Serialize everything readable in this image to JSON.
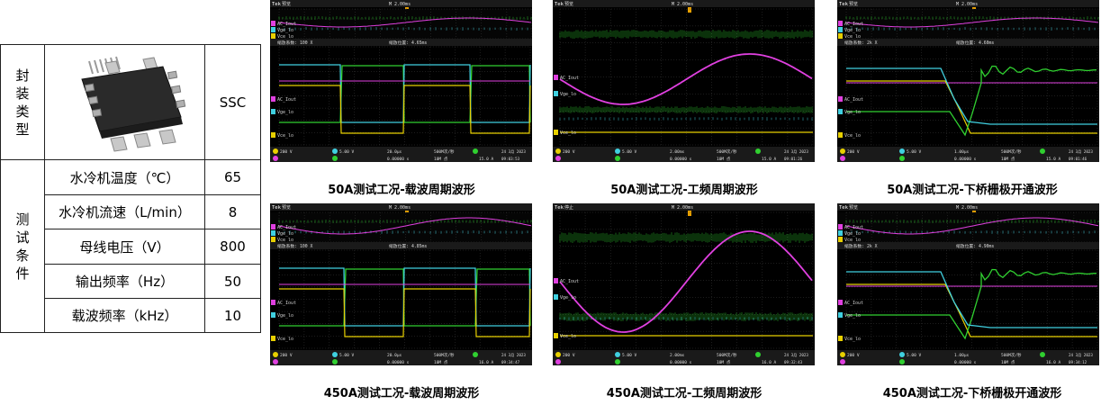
{
  "table": {
    "package_label": [
      "封",
      "装",
      "类",
      "型"
    ],
    "package_value": "SSC",
    "test_label": [
      "测",
      "试",
      "条",
      "件"
    ],
    "rows": [
      {
        "name": "水冷机温度（℃）",
        "value": "65"
      },
      {
        "name": "水冷机流速（L/min）",
        "value": "8"
      },
      {
        "name": "母线电压（V）",
        "value": "800"
      },
      {
        "name": "输出频率（Hz）",
        "value": "50"
      },
      {
        "name": "载波频率（kHz）",
        "value": "10"
      }
    ]
  },
  "panels": [
    {
      "caption": "50A测试工况-载波周期波形",
      "mode": "预览",
      "top_time": "M 2.00ms",
      "zoom_factor": "缩放系数: 100 X",
      "zoom_pos": "缩放位置: 4.65ms",
      "ch1": "200 V",
      "ch2": "5.00 V",
      "ch3": "2 ",
      "ch4": "15.0 A",
      "timebase": "20.0μs",
      "rate": "500M次/秒",
      "points": "10M 点",
      "trigger": "15.0 A",
      "date": "24 3月 2023",
      "time": "09:03:53",
      "offset": "0.00000 s"
    },
    {
      "caption": "50A测试工况-工频周期波形",
      "mode": "预览",
      "top_time": "M 2.00ms",
      "zoom_factor": "",
      "zoom_pos": "",
      "ch1": "200 V",
      "ch2": "5.00 V",
      "ch3": "",
      "ch4": "15.0 A",
      "timebase": "2.00ms",
      "rate": "500M次/秒",
      "points": "10M 点",
      "trigger": "15.0 A",
      "date": "24 3月 2023",
      "time": "09:01:26",
      "offset": "0.00000 s"
    },
    {
      "caption": "50A测试工况-下桥栅极开通波形",
      "mode": "预览",
      "top_time": "M 2.00ms",
      "zoom_factor": "缩放系数: 2k X",
      "zoom_pos": "缩放位置: 4.60ms",
      "ch1": "200 V",
      "ch2": "5.00 V",
      "ch3": "",
      "ch4": "15.0 A",
      "timebase": "1.00μs",
      "rate": "500M次/秒",
      "points": "10M 点",
      "trigger": "15.0 A",
      "date": "24 3月 2023",
      "time": "09:01:46",
      "offset": "0.00000 s"
    },
    {
      "caption": "450A测试工况-载波周期波形",
      "mode": "预览",
      "top_time": "M 2.00ms",
      "zoom_factor": "缩放系数: 100 X",
      "zoom_pos": "缩放位置: 4.85ms",
      "ch1": "200 V",
      "ch2": "5.00 V",
      "ch3": "",
      "ch4": "16.0 A",
      "timebase": "20.0μs",
      "rate": "500M次/秒",
      "points": "10M 点",
      "trigger": "16.0 A",
      "date": "24 3月 2023",
      "time": "09:34:47",
      "offset": "0.00000 s"
    },
    {
      "caption": "450A测试工况-工频周期波形",
      "mode": "停止",
      "top_time": "M 2.00ms",
      "zoom_factor": "",
      "zoom_pos": "",
      "ch1": "200 V",
      "ch2": "5.00 V",
      "ch3": "",
      "ch4": "250 A",
      "timebase": "2.00ms",
      "rate": "500M次/秒",
      "points": "10M 点",
      "trigger": "16.0 A",
      "date": "24 3月 2023",
      "time": "09:32:43",
      "offset": "0.00000 s"
    },
    {
      "caption": "450A测试工况-下桥栅极开通波形",
      "mode": "预览",
      "top_time": "M 2.00ms",
      "zoom_factor": "缩放系数: 2k X",
      "zoom_pos": "缩放位置: 4.90ms",
      "ch1": "200 V",
      "ch2": "5.00 V",
      "ch3": "",
      "ch4": "250 A",
      "timebase": "1.00μs",
      "rate": "500M次/秒",
      "points": "10M 点",
      "trigger": "16.0 A",
      "date": "24 3月 2023",
      "time": "09:34:12",
      "offset": "0.00000 s"
    }
  ],
  "channel_labels": {
    "ac": "AC_Iout",
    "vge": "Vge_lo",
    "vce": "Vce_lo"
  },
  "brand": "Tek",
  "colors": {
    "ch1": "#e8d000",
    "ch2": "#40d0e0",
    "ch3": "#e040e0",
    "ch4": "#30d030",
    "grid": "#3a3a3a",
    "bar": "#1a1a1a"
  }
}
